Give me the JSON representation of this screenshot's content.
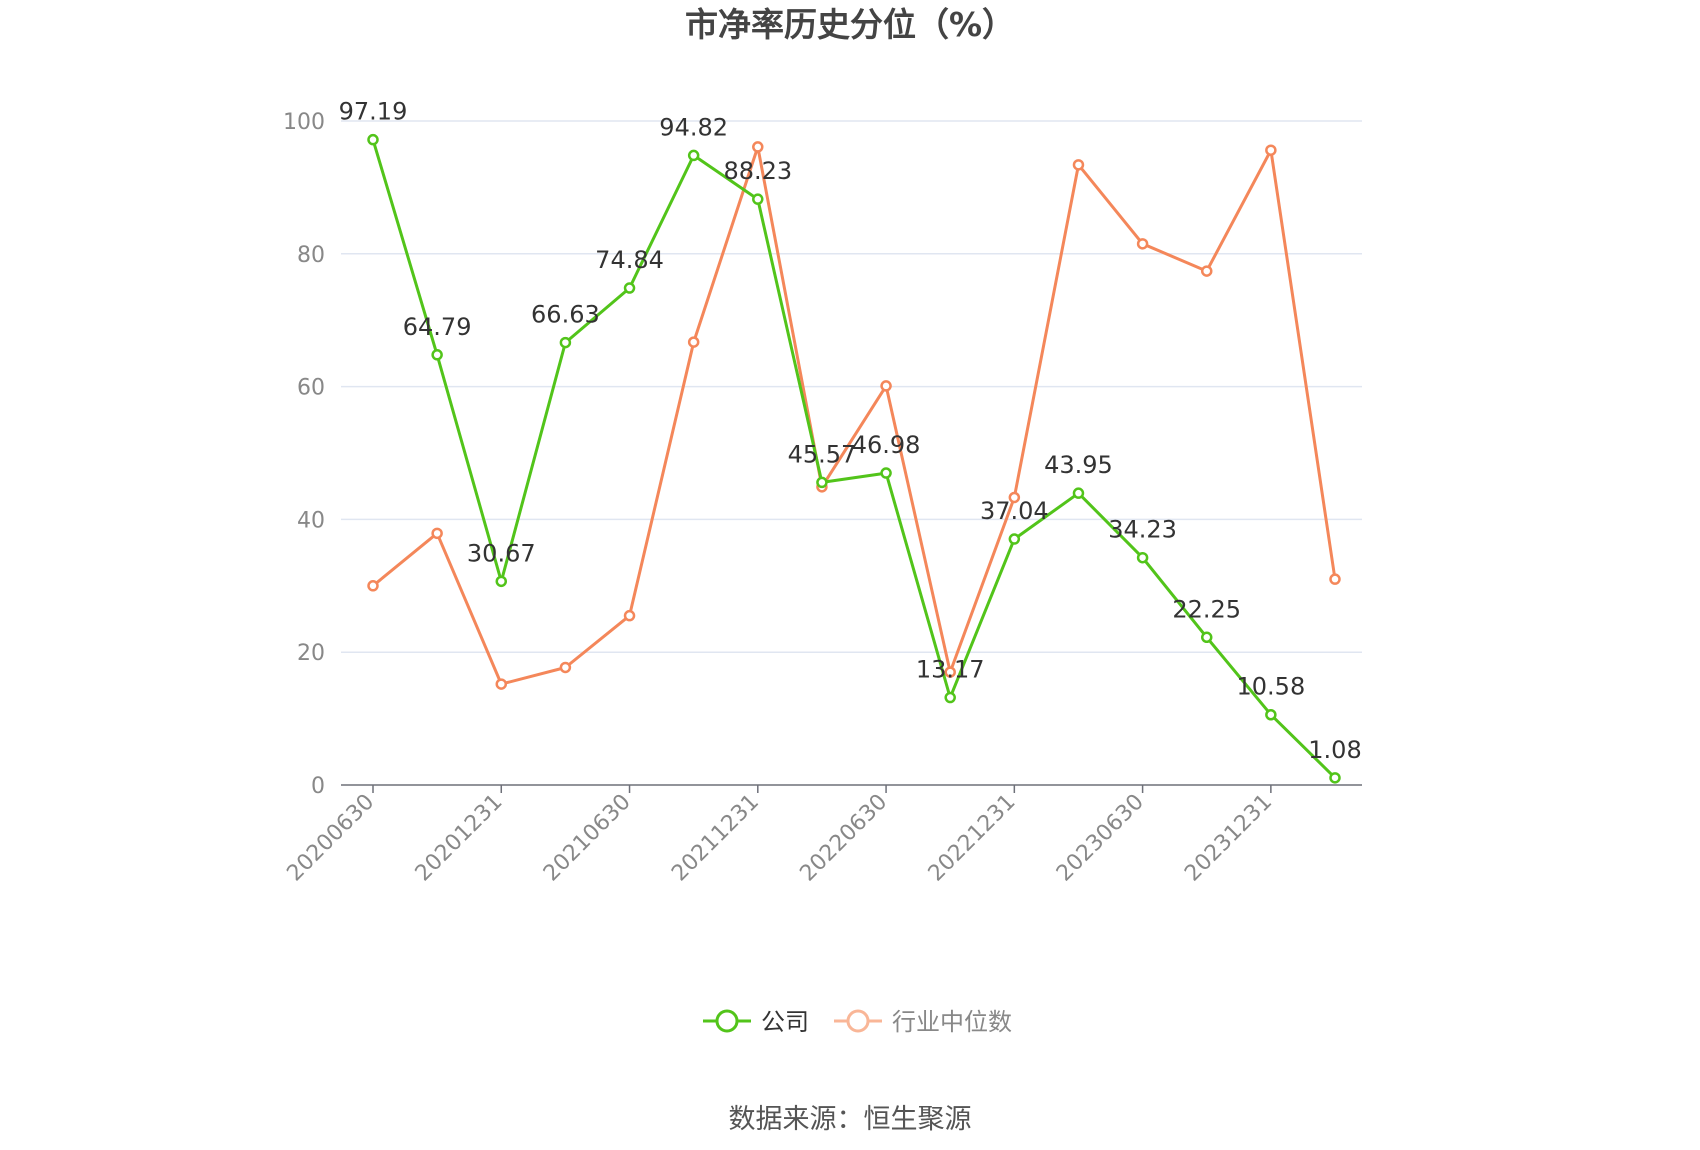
{
  "chart_data": {
    "type": "line",
    "title": "市净率历史分位（%）",
    "source_text": "数据来源：恒生聚源",
    "x": [
      "20200630",
      "20200930",
      "20201231",
      "20210331",
      "20210630",
      "20210930",
      "20211231",
      "20220331",
      "20220630",
      "20220930",
      "20221231",
      "20230331",
      "20230630",
      "20230930",
      "20231231",
      "20240331"
    ],
    "x_tick_labels": [
      "20200630",
      "20201231",
      "20210630",
      "20211231",
      "20220630",
      "20221231",
      "20230630",
      "20231231"
    ],
    "y_ticks": [
      0,
      20,
      40,
      60,
      80,
      100
    ],
    "ylim": [
      0,
      100
    ],
    "grid": true,
    "legend_position": "bottom-center",
    "series": [
      {
        "name": "公司",
        "color": "#52c41a",
        "values": [
          97.19,
          64.79,
          30.67,
          66.63,
          74.84,
          94.82,
          88.23,
          45.57,
          46.98,
          13.17,
          37.04,
          43.95,
          34.23,
          22.25,
          10.58,
          1.08
        ],
        "labels": [
          "97.19",
          "64.79",
          "30.67",
          "66.63",
          "74.84",
          "94.82",
          "88.23",
          "45.57",
          "46.98",
          "13.17",
          "37.04",
          "43.95",
          "34.23",
          "22.25",
          "10.58",
          "1.08"
        ]
      },
      {
        "name": "行业中位数",
        "color": "#f4875a",
        "values": [
          30.0,
          37.9,
          15.2,
          17.7,
          25.5,
          66.7,
          96.1,
          44.9,
          60.1,
          17.0,
          43.3,
          93.4,
          81.5,
          77.4,
          95.6,
          31.0
        ]
      }
    ]
  }
}
